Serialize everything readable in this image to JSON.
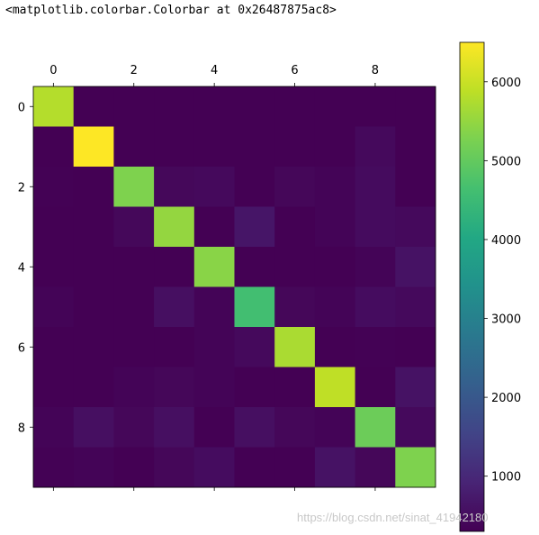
{
  "output_repr": "<matplotlib.colorbar.Colorbar at 0x26487875ac8>",
  "watermark": "https://blog.csdn.net/sinat_41942180",
  "chart_data": {
    "type": "heatmap",
    "colormap": "viridis",
    "rows": 10,
    "cols": 10,
    "x_tick_position": "top",
    "x_ticks": [
      0,
      2,
      4,
      6,
      8
    ],
    "y_ticks": [
      0,
      2,
      4,
      6,
      8
    ],
    "values": [
      [
        5800,
        300,
        300,
        300,
        300,
        300,
        300,
        300,
        300,
        300
      ],
      [
        300,
        6500,
        300,
        300,
        300,
        300,
        300,
        300,
        450,
        300
      ],
      [
        320,
        300,
        5300,
        420,
        450,
        300,
        400,
        350,
        480,
        300
      ],
      [
        300,
        300,
        420,
        5500,
        300,
        650,
        300,
        350,
        480,
        450
      ],
      [
        300,
        300,
        300,
        300,
        5400,
        300,
        300,
        300,
        350,
        600
      ],
      [
        350,
        300,
        300,
        550,
        350,
        4600,
        400,
        350,
        500,
        450
      ],
      [
        300,
        300,
        300,
        300,
        350,
        450,
        5700,
        300,
        320,
        300
      ],
      [
        300,
        300,
        350,
        400,
        350,
        300,
        300,
        5900,
        300,
        600
      ],
      [
        350,
        550,
        400,
        550,
        300,
        550,
        400,
        350,
        5100,
        450
      ],
      [
        320,
        350,
        300,
        400,
        500,
        300,
        300,
        600,
        400,
        5300
      ]
    ],
    "colorbar": {
      "range": [
        300,
        6500
      ],
      "ticks": [
        1000,
        2000,
        3000,
        4000,
        5000,
        6000
      ]
    }
  }
}
